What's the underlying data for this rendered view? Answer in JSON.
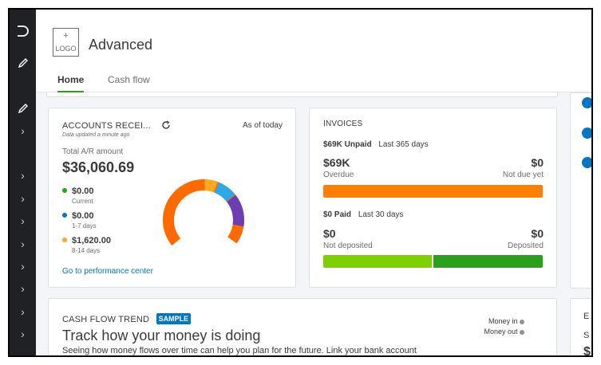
{
  "header": {
    "logo_plus": "+",
    "logo_text": "LOGO",
    "company_name": "Advanced",
    "tabs": [
      {
        "label": "Home"
      },
      {
        "label": "Cash flow"
      }
    ]
  },
  "ar": {
    "title": "ACCOUNTS RECEI...",
    "as_of": "As of today",
    "updated": "Data updated a minute ago",
    "total_label": "Total A/R amount",
    "total_value": "$36,060.69",
    "legend": [
      {
        "amount": "$0.00",
        "label": "Current",
        "color": "#2ca01c"
      },
      {
        "amount": "$0.00",
        "label": "1-7 days",
        "color": "#0077c5"
      },
      {
        "amount": "$1,620.00",
        "label": "8-14 days",
        "color": "#ffa81f"
      }
    ],
    "link": "Go to performance center",
    "donut_colors": [
      "#ff6a00",
      "#ffa81f",
      "#2ca9e8",
      "#6b3fb3"
    ]
  },
  "invoices": {
    "title": "INVOICES",
    "unpaid_amount": "$69K Unpaid",
    "unpaid_period": "Last 365 days",
    "overdue_value": "$69K",
    "overdue_label": "Overdue",
    "not_due_value": "$0",
    "not_due_label": "Not due yet",
    "paid_amount": "$0 Paid",
    "paid_period": "Last 30 days",
    "not_deposited_value": "$0",
    "not_deposited_label": "Not deposited",
    "deposited_value": "$0",
    "deposited_label": "Deposited",
    "colors": {
      "overdue": "#ff8000",
      "not_deposited": "#7fd000",
      "deposited": "#2ca01c"
    }
  },
  "cashflow": {
    "title": "CASH FLOW TREND",
    "badge": "SAMPLE",
    "heading": "Track how your money is doing",
    "body": "Seeing how money flows over time can help you plan for the future. Link your bank account",
    "money_in": "Money in",
    "money_out": "Money out"
  },
  "right_partial": {
    "letter": "E",
    "small": "S",
    "dollar": "$"
  }
}
